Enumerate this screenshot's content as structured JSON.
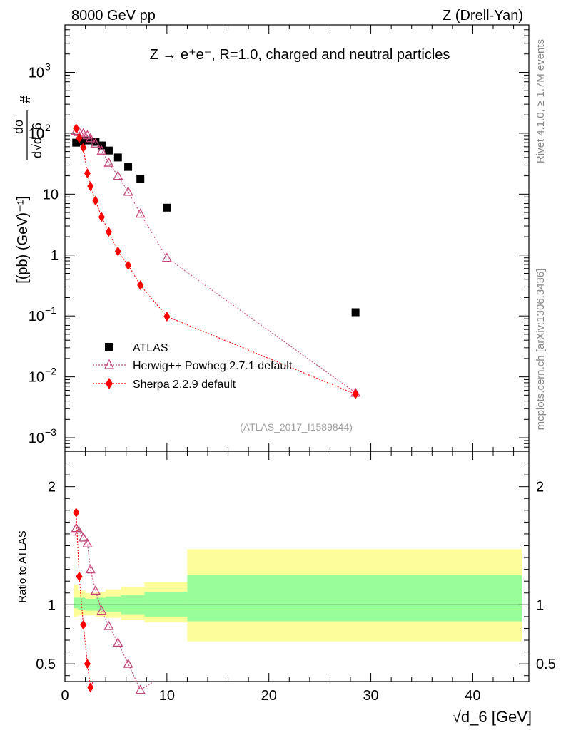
{
  "header": {
    "left": "8000 GeV pp",
    "right": "Z (Drell-Yan)"
  },
  "side_text": {
    "rivet": "Rivet 4.1.0, ≥ 1.7M events",
    "mcplots": "mcplots.cern.ch [arXiv:1306.3436]"
  },
  "chart_data": {
    "type": "scatter",
    "title": "Z → e⁺e⁻, R=1.0, charged and neutral particles",
    "watermark": "(ATLAS_2017_I1589844)",
    "xlabel": "√d_6 [GeV]",
    "ylabel": "# dσ / d√d_6 [(pb) (GeV)⁻¹]",
    "ratio_ylabel": "Ratio to ATLAS",
    "x_ticks": [
      "0",
      "10",
      "20",
      "30",
      "40"
    ],
    "xlim": [
      0,
      45.5
    ],
    "main": {
      "yscale": "log",
      "ylim": [
        0.0006,
        6000
      ],
      "y_ticks": [
        {
          "value": 0.001,
          "base": "10",
          "exp": "−3"
        },
        {
          "value": 0.01,
          "base": "10",
          "exp": "−2"
        },
        {
          "value": 0.1,
          "base": "10",
          "exp": "−1"
        },
        {
          "value": 1,
          "label": "1"
        },
        {
          "value": 10,
          "label": "10"
        },
        {
          "value": 100,
          "base": "10",
          "exp": "2"
        },
        {
          "value": 1000,
          "base": "10",
          "exp": "3"
        }
      ]
    },
    "ratio": {
      "ylim": [
        0.35,
        2.3
      ],
      "y_ticks": [
        "0.5",
        "1",
        "2"
      ],
      "bands": [
        {
          "x0": 0.9,
          "x1": 1.3,
          "inner": [
            0.97,
            1.06
          ],
          "outer": [
            0.9,
            1.17
          ]
        },
        {
          "x0": 1.3,
          "x1": 2.0,
          "inner": [
            0.96,
            1.06
          ],
          "outer": [
            0.91,
            1.12
          ]
        },
        {
          "x0": 2.0,
          "x1": 3.0,
          "inner": [
            0.95,
            1.05
          ],
          "outer": [
            0.91,
            1.1
          ]
        },
        {
          "x0": 3.0,
          "x1": 4.0,
          "inner": [
            0.95,
            1.06
          ],
          "outer": [
            0.9,
            1.11
          ]
        },
        {
          "x0": 4.0,
          "x1": 5.5,
          "inner": [
            0.94,
            1.07
          ],
          "outer": [
            0.89,
            1.13
          ]
        },
        {
          "x0": 5.5,
          "x1": 7.8,
          "inner": [
            0.92,
            1.08
          ],
          "outer": [
            0.87,
            1.15
          ]
        },
        {
          "x0": 7.8,
          "x1": 12.0,
          "inner": [
            0.9,
            1.11
          ],
          "outer": [
            0.85,
            1.19
          ]
        },
        {
          "x0": 12.0,
          "x1": 44.8,
          "inner": [
            0.86,
            1.25
          ],
          "outer": [
            0.69,
            1.47
          ]
        }
      ]
    },
    "legend_position": "lower-left",
    "series": [
      {
        "name": "ATLAS",
        "marker": "square",
        "color": "#000000",
        "x": [
          1.1,
          1.6,
          2.2,
          3.0,
          3.6,
          4.3,
          5.2,
          6.2,
          7.4,
          10.0,
          28.5
        ],
        "y": [
          70,
          75,
          76,
          72,
          63,
          52,
          40,
          28,
          18,
          6,
          0.115
        ]
      },
      {
        "name": "Herwig++ Powheg 2.7.1 default",
        "marker": "triangle-open",
        "color": "#c6477d",
        "x": [
          1.1,
          1.4,
          1.8,
          2.2,
          2.5,
          3.0,
          3.6,
          4.3,
          5.2,
          6.2,
          7.4,
          10.0,
          28.5
        ],
        "y": [
          110,
          105,
          100,
          93,
          83,
          68,
          52,
          33,
          20,
          11,
          4.8,
          0.9,
          0.0055
        ],
        "ratio": [
          1.65,
          1.62,
          1.57,
          1.52,
          1.3,
          1.12,
          0.95,
          0.82,
          0.68,
          0.5,
          0.28
        ]
      },
      {
        "name": "Sherpa 2.2.9 default",
        "marker": "diamond",
        "color": "#ff0000",
        "x": [
          1.1,
          1.4,
          1.8,
          2.2,
          2.5,
          3.0,
          3.6,
          4.3,
          5.2,
          6.2,
          7.4,
          10.0,
          28.5
        ],
        "y": [
          120,
          83,
          58,
          22,
          13.5,
          7.8,
          4.2,
          2.4,
          1.15,
          0.68,
          0.32,
          0.098,
          0.0052
        ],
        "ratio": [
          1.78,
          1.24,
          0.83,
          0.5,
          0.3
        ]
      }
    ]
  }
}
